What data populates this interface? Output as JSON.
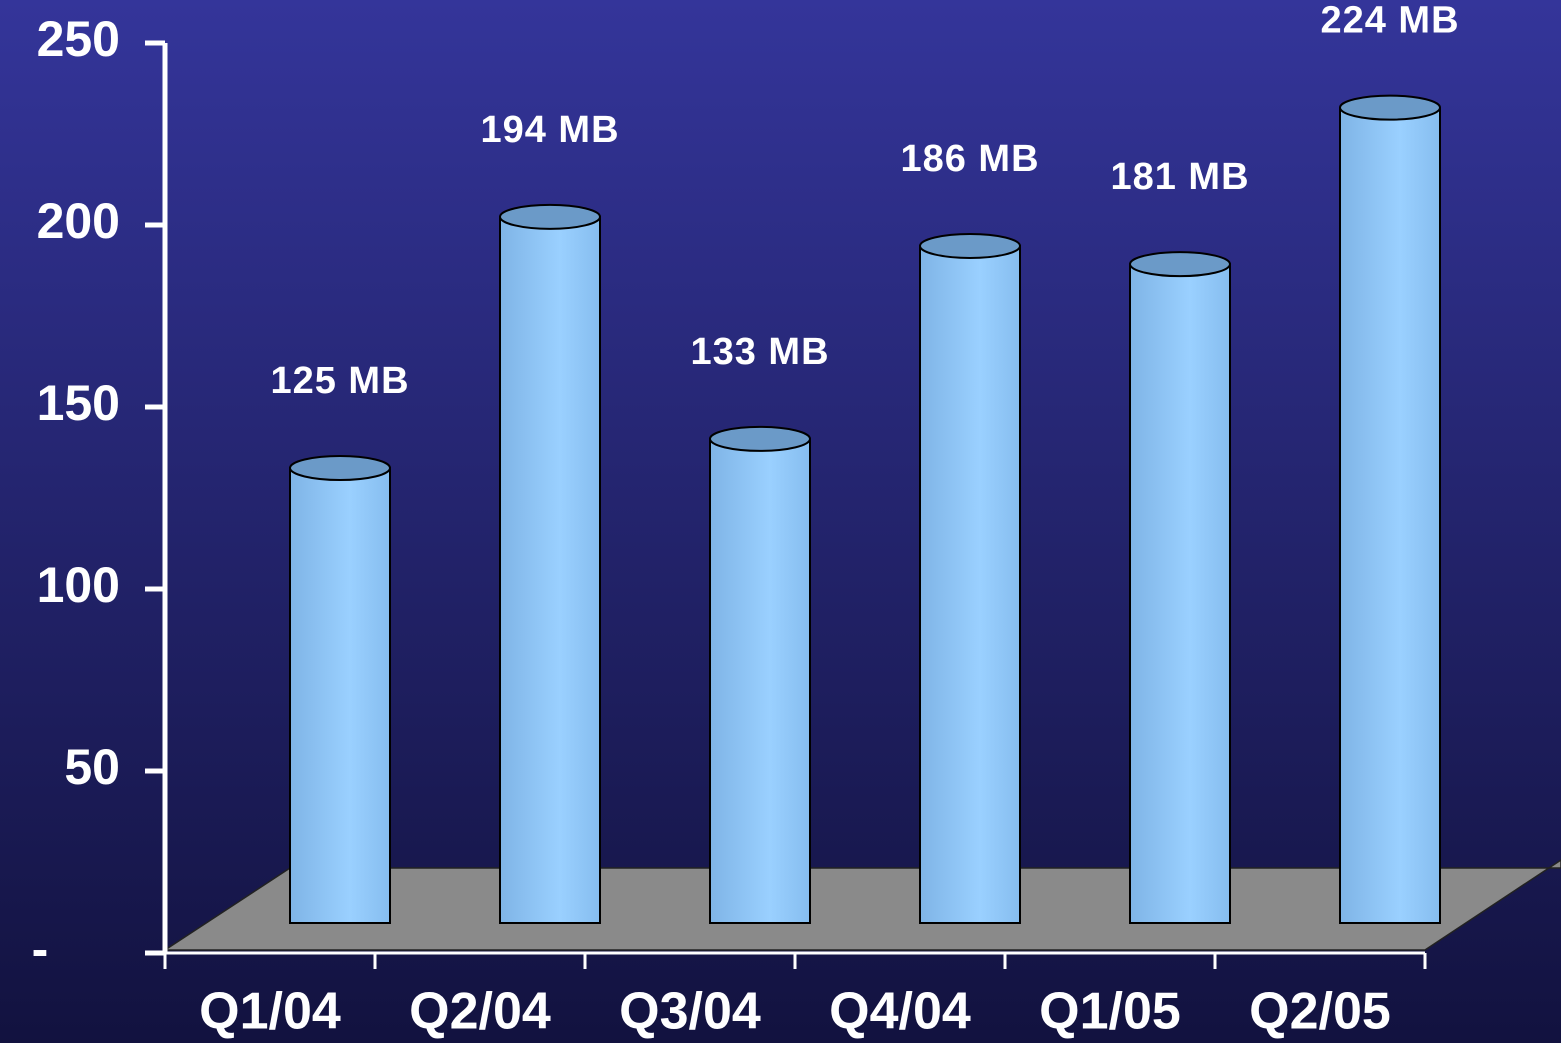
{
  "chart_data": {
    "type": "bar",
    "categories": [
      "Q1/04",
      "Q2/04",
      "Q3/04",
      "Q4/04",
      "Q1/05",
      "Q2/05"
    ],
    "values": [
      125,
      194,
      133,
      186,
      181,
      224
    ],
    "value_labels": [
      "125 MB",
      "194 MB",
      "133 MB",
      "186 MB",
      "181 MB",
      "224 MB"
    ],
    "color": "#8ec4f4",
    "ylim": [
      0,
      250
    ],
    "yticks": [
      {
        "value": 0,
        "label": "-"
      },
      50,
      100,
      150,
      200,
      250
    ]
  }
}
